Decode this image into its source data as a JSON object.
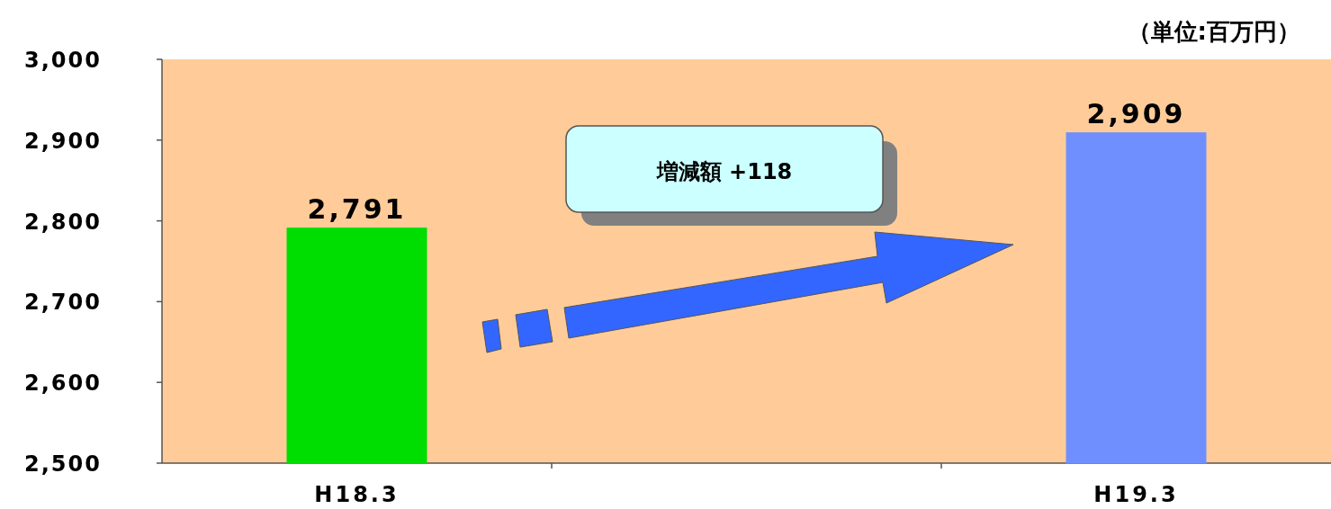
{
  "chart_data": {
    "type": "bar",
    "categories": [
      "H18.3",
      null,
      "H19.3"
    ],
    "values": [
      2791,
      null,
      2909
    ],
    "colors": [
      "#00dd00",
      null,
      "#6f8fff"
    ],
    "value_labels": [
      "2,791",
      null,
      "2,909"
    ],
    "ylim": [
      2500,
      3000
    ],
    "yticks": [
      {
        "value": 2500,
        "label": "2,500"
      },
      {
        "value": 2600,
        "label": "2,600"
      },
      {
        "value": 2700,
        "label": "2,700"
      },
      {
        "value": 2800,
        "label": "2,800"
      },
      {
        "value": 2900,
        "label": "2,900"
      },
      {
        "value": 3000,
        "label": "3,000"
      }
    ],
    "annotations": [
      "増減額  +118",
      "（単位:百万円）"
    ],
    "grid": false
  }
}
